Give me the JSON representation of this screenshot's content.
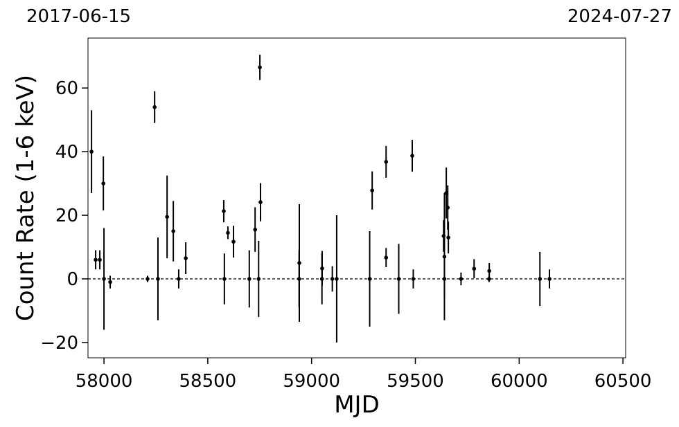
{
  "chart_data": {
    "type": "errorbar-scatter",
    "top_left_label": "2017-06-15",
    "top_right_label": "2024-07-27",
    "x_label": "MJD",
    "y_label": "Count Rate (1-6 keV)",
    "xlim": [
      57923,
      60513
    ],
    "ylim": [
      -24.8,
      75.7
    ],
    "xticks": [
      58000,
      58500,
      59000,
      59500,
      60000,
      60500
    ],
    "yticks": [
      {
        "value": -20,
        "label": "−20"
      },
      0,
      20,
      40,
      60
    ],
    "hline": 0,
    "color": "#000000",
    "x": [
      57940,
      57960,
      57980,
      57997,
      58000,
      58030,
      58210,
      58244,
      58260,
      58304,
      58334,
      58360,
      58394,
      58577,
      58580,
      58597,
      58624,
      58700,
      58728,
      58745,
      58751,
      58754,
      58940,
      58941,
      59050,
      59051,
      59100,
      59121,
      59280,
      59292,
      59359,
      59359,
      59420,
      59485,
      59490,
      59636,
      59640,
      59640,
      59649,
      59656,
      59659,
      59720,
      59783,
      59855,
      59856,
      60100,
      60146
    ],
    "y": [
      40,
      6,
      6,
      30,
      0,
      -1,
      0,
      54,
      0,
      19.5,
      15,
      0,
      6.5,
      21.3,
      0,
      14.5,
      11.7,
      0,
      15.5,
      0,
      66.5,
      24.1,
      0,
      5,
      0,
      3.3,
      0,
      0,
      0,
      27.8,
      36.8,
      6.7,
      0,
      38.7,
      0,
      13.5,
      0,
      7,
      27,
      22.4,
      13,
      0,
      3.2,
      0,
      2.5,
      0,
      0
    ],
    "yerr": [
      13,
      3,
      3,
      8.5,
      16,
      2,
      1,
      5,
      13,
      13,
      9.5,
      3,
      5,
      3.5,
      8,
      2,
      5,
      9,
      7,
      12,
      4,
      6,
      9,
      18.5,
      8,
      5.5,
      4,
      20,
      15,
      6,
      5,
      3,
      11,
      5,
      3,
      5,
      6,
      20,
      8,
      7,
      5,
      2,
      3,
      1,
      2.5,
      8.5,
      3
    ]
  }
}
